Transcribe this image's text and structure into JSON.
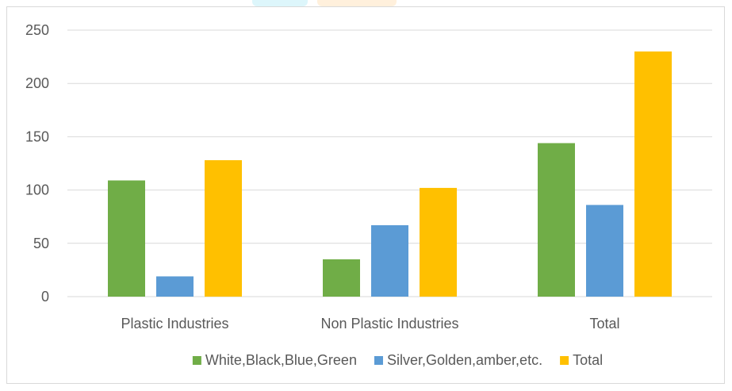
{
  "chart_data": {
    "type": "bar",
    "categories": [
      "Plastic Industries",
      "Non Plastic Industries",
      "Total"
    ],
    "series": [
      {
        "name": "White,Black,Blue,Green",
        "values": [
          109,
          35,
          144
        ],
        "color": "#70ad47"
      },
      {
        "name": "Silver,Golden,amber,etc.",
        "values": [
          19,
          67,
          86
        ],
        "color": "#5b9bd5"
      },
      {
        "name": "Total",
        "values": [
          128,
          102,
          230
        ],
        "color": "#ffc000"
      }
    ],
    "ylim": [
      0,
      250
    ],
    "yticks": [
      0,
      50,
      100,
      150,
      200,
      250
    ],
    "grid": true,
    "legend": "bottom",
    "gridColor": "#d9d9d9",
    "title": "",
    "xlabel": "",
    "ylabel": ""
  }
}
